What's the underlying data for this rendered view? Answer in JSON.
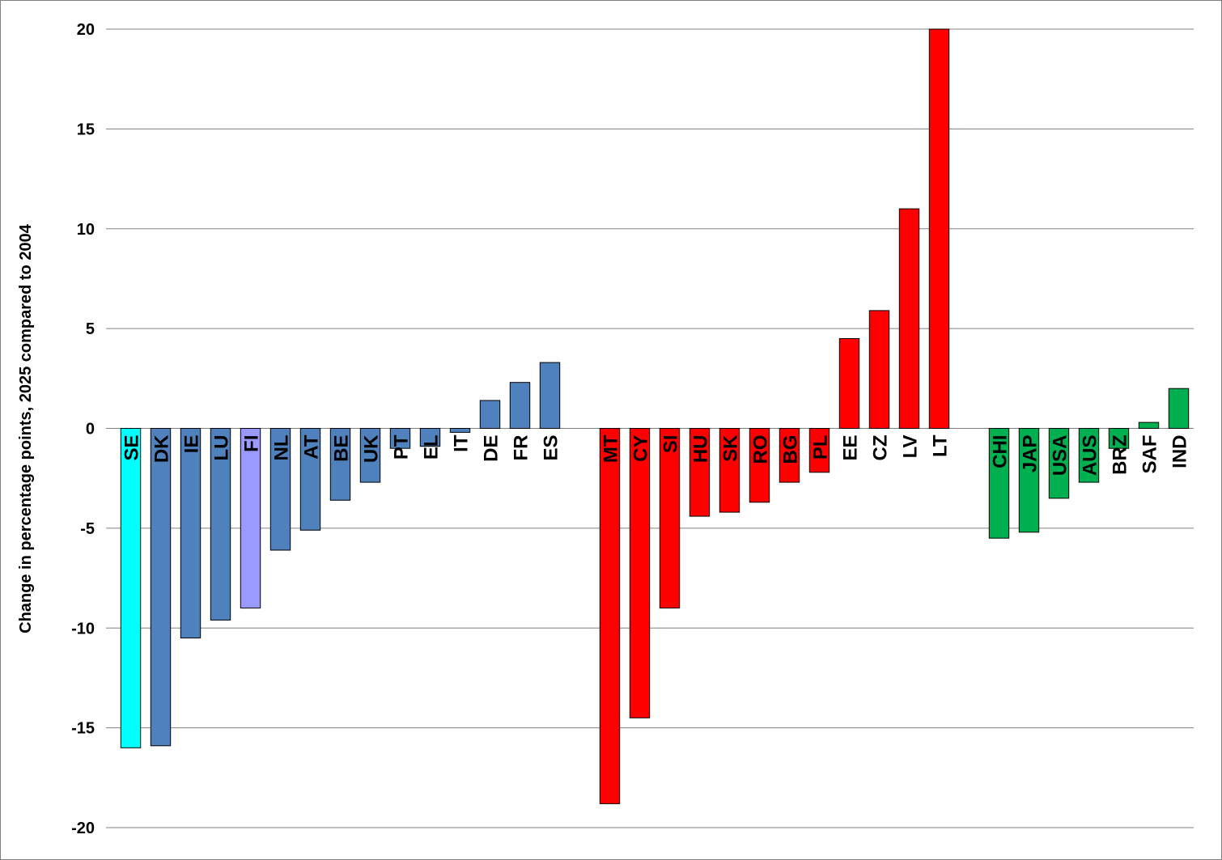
{
  "chart_data": {
    "type": "bar",
    "title": "",
    "xlabel": "",
    "ylabel": "Change in percentage points, 2025 compared to 2004",
    "ylim": [
      -20,
      20
    ],
    "yticks": [
      20,
      15,
      10,
      5,
      0,
      -5,
      -10,
      -15,
      -20
    ],
    "grid": true,
    "legend": "none",
    "colors": {
      "eu15": "#4f81bd",
      "se": "#00ffff",
      "fi": "#9999ff",
      "new_members": "#ff0000",
      "non_eu": "#00b050",
      "gridline": "#808080"
    },
    "categories": [
      "SE",
      "DK",
      "IE",
      "LU",
      "FI",
      "NL",
      "AT",
      "BE",
      "UK",
      "PT",
      "EL",
      "IT",
      "DE",
      "FR",
      "ES",
      "",
      "MT",
      "CY",
      "SI",
      "HU",
      "SK",
      "RO",
      "BG",
      "PL",
      "EE",
      "CZ",
      "LV",
      "LT",
      "",
      "CHI",
      "JAP",
      "USA",
      "AUS",
      "BRZ",
      "SAF",
      "IND"
    ],
    "values": [
      -16.0,
      -15.9,
      -10.5,
      -9.6,
      -9.0,
      -6.1,
      -5.1,
      -3.6,
      -2.7,
      -1.0,
      -0.9,
      -0.2,
      1.4,
      2.3,
      3.3,
      null,
      -18.8,
      -14.5,
      -9.0,
      -4.4,
      -4.2,
      -3.7,
      -2.7,
      -2.2,
      4.5,
      5.9,
      11.0,
      20.0,
      null,
      -5.5,
      -5.2,
      -3.5,
      -2.7,
      -1.0,
      0.3,
      2.0
    ],
    "bar_colors": [
      "se",
      "eu15",
      "eu15",
      "eu15",
      "fi",
      "eu15",
      "eu15",
      "eu15",
      "eu15",
      "eu15",
      "eu15",
      "eu15",
      "eu15",
      "eu15",
      "eu15",
      "",
      "new_members",
      "new_members",
      "new_members",
      "new_members",
      "new_members",
      "new_members",
      "new_members",
      "new_members",
      "new_members",
      "new_members",
      "new_members",
      "new_members",
      "",
      "non_eu",
      "non_eu",
      "non_eu",
      "non_eu",
      "non_eu",
      "non_eu",
      "non_eu"
    ]
  }
}
